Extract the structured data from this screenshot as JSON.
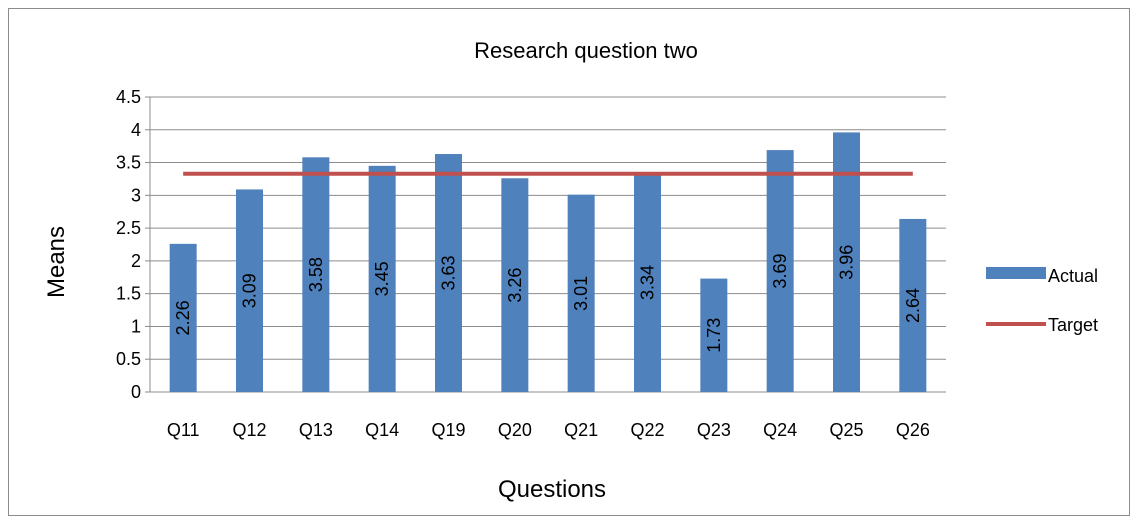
{
  "chart_data": {
    "type": "bar",
    "title": "Research question two",
    "xlabel": "Questions",
    "ylabel": "Means",
    "categories": [
      "Q11",
      "Q12",
      "Q13",
      "Q14",
      "Q19",
      "Q20",
      "Q21",
      "Q22",
      "Q23",
      "Q24",
      "Q25",
      "Q26"
    ],
    "series": [
      {
        "name": "Actual",
        "type": "bar",
        "color": "#4F81BD",
        "values": [
          2.26,
          3.09,
          3.58,
          3.45,
          3.63,
          3.26,
          3.01,
          3.34,
          1.73,
          3.69,
          3.96,
          2.64
        ]
      },
      {
        "name": "Target",
        "type": "line",
        "color": "#C0504D",
        "values": [
          3.33,
          3.33,
          3.33,
          3.33,
          3.33,
          3.33,
          3.33,
          3.33,
          3.33,
          3.33,
          3.33,
          3.33
        ]
      }
    ],
    "y_ticks": [
      "0",
      "0.5",
      "1",
      "1.5",
      "2",
      "2.5",
      "3",
      "3.5",
      "4",
      "4.5"
    ],
    "ylim": [
      0,
      4.5
    ],
    "grid": true,
    "legend_position": "right",
    "data_labels": "vertical inside bars"
  }
}
